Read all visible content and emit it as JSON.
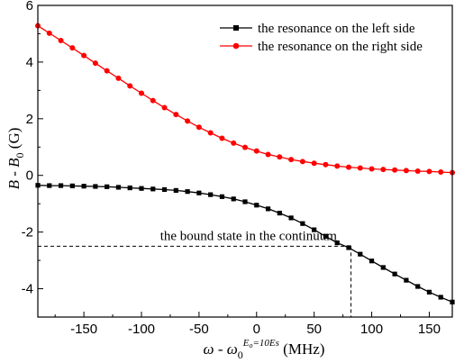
{
  "chart_data": {
    "type": "line",
    "xlabel": {
      "omega": "ω",
      "sep": " - ",
      "omega0": "ω",
      "sub": "0",
      "sup_lhs": "E",
      "sup_lhs_sub": "o",
      "sup_rhs": "=10Es",
      "units": " (MHz)"
    },
    "ylabel": {
      "b": "B",
      "sep": " - ",
      "b0": "B",
      "sub": "0",
      "units": " (G)"
    },
    "xlim": [
      -190,
      170
    ],
    "ylim": [
      -5,
      6
    ],
    "xticks": [
      -150,
      -100,
      -50,
      0,
      50,
      100,
      150
    ],
    "yticks": [
      -4,
      -2,
      0,
      2,
      4,
      6
    ],
    "legend_position": "top-right",
    "series": [
      {
        "name": "the resonance on the left side",
        "color": "#000000",
        "marker": "square",
        "x": [
          -190,
          -180,
          -170,
          -160,
          -150,
          -140,
          -130,
          -120,
          -110,
          -100,
          -90,
          -80,
          -70,
          -60,
          -50,
          -40,
          -30,
          -20,
          -10,
          0,
          10,
          20,
          30,
          40,
          50,
          60,
          70,
          80,
          90,
          100,
          110,
          120,
          130,
          140,
          150,
          160,
          170
        ],
        "y": [
          -0.35,
          -0.36,
          -0.36,
          -0.37,
          -0.38,
          -0.39,
          -0.4,
          -0.42,
          -0.44,
          -0.46,
          -0.48,
          -0.5,
          -0.53,
          -0.57,
          -0.62,
          -0.68,
          -0.75,
          -0.83,
          -0.93,
          -1.05,
          -1.18,
          -1.33,
          -1.5,
          -1.7,
          -1.92,
          -2.15,
          -2.38,
          -2.55,
          -2.78,
          -3.02,
          -3.25,
          -3.48,
          -3.7,
          -3.92,
          -4.12,
          -4.3,
          -4.47
        ]
      },
      {
        "name": "the resonance on the right side",
        "color": "#ff0000",
        "marker": "circle",
        "x": [
          -190,
          -180,
          -170,
          -160,
          -150,
          -140,
          -130,
          -120,
          -110,
          -100,
          -90,
          -80,
          -70,
          -60,
          -50,
          -40,
          -30,
          -20,
          -10,
          0,
          10,
          20,
          30,
          40,
          50,
          60,
          70,
          80,
          90,
          100,
          110,
          120,
          130,
          140,
          150,
          160,
          170
        ],
        "y": [
          5.28,
          5.02,
          4.76,
          4.5,
          4.23,
          3.96,
          3.69,
          3.43,
          3.16,
          2.9,
          2.64,
          2.39,
          2.15,
          1.92,
          1.7,
          1.5,
          1.31,
          1.14,
          0.99,
          0.86,
          0.74,
          0.65,
          0.56,
          0.49,
          0.43,
          0.38,
          0.33,
          0.29,
          0.26,
          0.23,
          0.21,
          0.19,
          0.17,
          0.15,
          0.14,
          0.12,
          0.1
        ]
      }
    ],
    "annotation": {
      "text": "the bound state in the continuum",
      "x": 82,
      "y": -2.5
    }
  }
}
